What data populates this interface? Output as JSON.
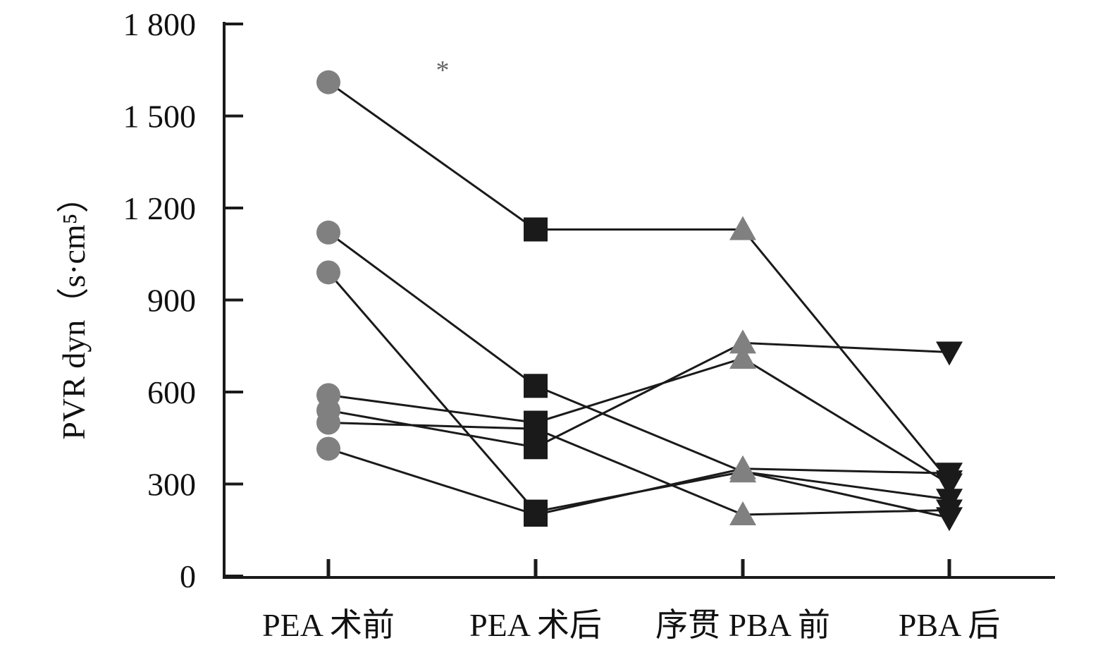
{
  "chart_data": {
    "type": "line",
    "categories": [
      "PEA 术前",
      "PEA 术后",
      "序贯 PBA 前",
      "PBA 后"
    ],
    "ylabel": "PVR dyn（s·cm⁵）",
    "ylim": [
      0,
      1800
    ],
    "yticks": [
      0,
      300,
      600,
      900,
      1200,
      1500,
      1800
    ],
    "ytick_labels": [
      "0",
      "300",
      "600",
      "900",
      "1 200",
      "1 500",
      "1 800"
    ],
    "annotation": "*",
    "marker_shapes": [
      "circle",
      "square",
      "triangle-up",
      "triangle-down"
    ],
    "marker_colors": [
      "#808080",
      "#1a1a1a",
      "#808080",
      "#1a1a1a"
    ],
    "line_color": "#1a1a1a",
    "series": [
      {
        "values": [
          1610,
          1130,
          1130,
          310
        ]
      },
      {
        "values": [
          1120,
          620,
          340,
          190
        ]
      },
      {
        "values": [
          990,
          210,
          340,
          250
        ]
      },
      {
        "values": [
          590,
          500,
          710,
          300
        ]
      },
      {
        "values": [
          540,
          420,
          760,
          730
        ]
      },
      {
        "values": [
          500,
          480,
          200,
          215
        ]
      },
      {
        "values": [
          415,
          200,
          350,
          335
        ]
      }
    ]
  }
}
